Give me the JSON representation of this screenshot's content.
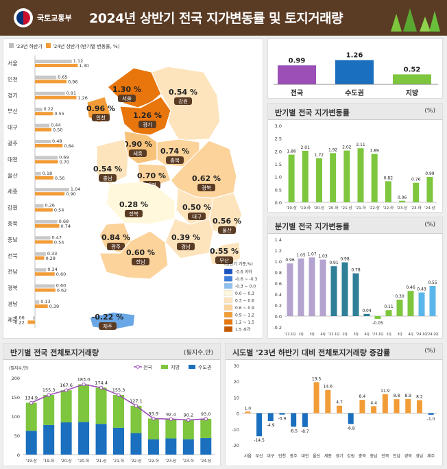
{
  "header": {
    "org": "국토교통부",
    "title": "2024년 상반기 전국 지가변동률 및 토지거래량"
  },
  "left_chart": {
    "legend": [
      "'23년 하반기",
      "'24년 상반기",
      "(반기별 변동률, %)"
    ],
    "regions": [
      "서울",
      "인천",
      "경기",
      "부산",
      "대구",
      "광주",
      "대전",
      "울산",
      "세종",
      "강원",
      "충북",
      "충남",
      "전북",
      "전남",
      "경북",
      "경남",
      "제주"
    ],
    "prev": [
      1.12,
      0.65,
      0.91,
      0.22,
      0.44,
      0.48,
      0.69,
      0.18,
      1.04,
      0.26,
      0.68,
      0.47,
      0.33,
      0.34,
      0.6,
      0.13,
      -0.06
    ],
    "curr": [
      1.3,
      0.96,
      1.26,
      0.55,
      0.5,
      0.84,
      0.7,
      0.56,
      0.9,
      0.54,
      0.74,
      0.54,
      0.28,
      0.6,
      0.62,
      0.39,
      -0.22
    ],
    "prev_labels": [
      "1.12",
      "0.65",
      "0.91",
      "0.22",
      "0.44",
      "0.48",
      "0.69",
      "0.18",
      "1.04",
      "0.26",
      "0.68",
      "0.47",
      "0.33",
      "0.34",
      "0.60",
      "0.13",
      "-0.06"
    ],
    "curr_labels": [
      "1.30",
      "0.96",
      "1.26",
      "0.55",
      "0.50",
      "0.84",
      "0.70",
      "0.56",
      "0.90",
      "0.54",
      "0.74",
      "0.54",
      "0.28",
      "0.60",
      "0.62",
      "0.39",
      "-0.22"
    ]
  },
  "map": {
    "regions": [
      {
        "name": "서울",
        "val": "1.30",
        "color": "#e8760c"
      },
      {
        "name": "인천",
        "val": "0.96",
        "color": "#f29c38"
      },
      {
        "name": "경기",
        "val": "1.26",
        "color": "#e8760c"
      },
      {
        "name": "강원",
        "val": "0.54",
        "color": "#fde4bd"
      },
      {
        "name": "세종",
        "val": "0.90",
        "color": "#f7c27a"
      },
      {
        "name": "충북",
        "val": "0.74",
        "color": "#fbd39b"
      },
      {
        "name": "충남",
        "val": "0.54",
        "color": "#fde4bd"
      },
      {
        "name": "대전",
        "val": "0.70",
        "color": "#fbd39b"
      },
      {
        "name": "경북",
        "val": "0.62",
        "color": "#fbd39b"
      },
      {
        "name": "대구",
        "val": "0.50",
        "color": "#fde4bd"
      },
      {
        "name": "전북",
        "val": "0.28",
        "color": "#fff8dc"
      },
      {
        "name": "울산",
        "val": "0.56",
        "color": "#fde4bd"
      },
      {
        "name": "경남",
        "val": "0.39",
        "color": "#fde4bd"
      },
      {
        "name": "광주",
        "val": "0.84",
        "color": "#fbd39b"
      },
      {
        "name": "전남",
        "val": "0.60",
        "color": "#fbd39b"
      },
      {
        "name": "부산",
        "val": "0.55",
        "color": "#fde4bd"
      },
      {
        "name": "제주",
        "val": "-0.22",
        "color": "#6aa7e6"
      }
    ],
    "legend_title": "(상반기 기준,%)",
    "legend": [
      {
        "label": "-0.6 이하",
        "color": "#1b52c2"
      },
      {
        "label": "-0.6 ~ -0.3",
        "color": "#3f7fdb"
      },
      {
        "label": "-0.3 ~ 0.0",
        "color": "#8fc0ef"
      },
      {
        "label": "0.0 ~ 0.3",
        "color": "#fff8dc"
      },
      {
        "label": "0.3 ~ 0.6",
        "color": "#fde4bd"
      },
      {
        "label": "0.6 ~ 0.9",
        "color": "#fbd39b"
      },
      {
        "label": "0.9 ~ 1.2",
        "color": "#f29c38"
      },
      {
        "label": "1.2 ~ 1.5",
        "color": "#e8760c"
      },
      {
        "label": "1.5 초과",
        "color": "#c65a00"
      }
    ]
  },
  "summary": {
    "labels": [
      "전국",
      "수도권",
      "지방"
    ],
    "values": [
      0.99,
      1.26,
      0.52
    ],
    "value_labels": [
      "0.99",
      "1.26",
      "0.52"
    ],
    "colors": [
      "#9c4fb6",
      "#1a6fbf",
      "#7dc63e"
    ]
  },
  "half_chart": {
    "title": "반기별 전국 지가변동률",
    "unit": "(%)",
    "categories": [
      "'19.상",
      "'19.하",
      "'20.상",
      "'20.하",
      "'21.상",
      "'21.하",
      "'22.상",
      "'22.하",
      "'23.상",
      "'23.하",
      "'24.상"
    ],
    "values": [
      1.86,
      2.01,
      1.72,
      1.92,
      2.02,
      2.11,
      1.89,
      0.82,
      0.06,
      0.76,
      0.99
    ],
    "value_labels": [
      "1.86",
      "2.01",
      "1.72",
      "1.92",
      "2.02",
      "2.11",
      "1.89",
      "0.82",
      "0.06",
      "0.76",
      "0.99"
    ],
    "yticks": [
      "3.0",
      "2.5",
      "2.0",
      "1.5",
      "1.0",
      "0.5",
      "0.0"
    ]
  },
  "quarter_chart": {
    "title": "분기별 전국 지가변동률",
    "unit": "(%)",
    "categories": [
      "'21.1Q",
      "2Q",
      "3Q",
      "4Q",
      "'22.1Q",
      "2Q",
      "3Q",
      "4Q",
      "'23.1Q",
      "2Q",
      "3Q",
      "4Q",
      "'24.1Q",
      "'24.2Q"
    ],
    "values": [
      0.96,
      1.05,
      1.07,
      1.03,
      0.91,
      0.98,
      0.78,
      0.04,
      -0.05,
      0.11,
      0.3,
      0.46,
      0.43,
      0.55
    ],
    "value_labels": [
      "0.96",
      "1.05",
      "1.07",
      "1.03",
      "0.91",
      "0.98",
      "0.78",
      "0.04",
      "-0.05",
      "0.11",
      "0.30",
      "0.46",
      "0.43",
      "0.55"
    ],
    "colors": [
      "#b4a3cf",
      "#b4a3cf",
      "#b4a3cf",
      "#b4a3cf",
      "#2e7f97",
      "#2e7f97",
      "#2e7f97",
      "#2e7f97",
      "#7dc63e",
      "#7dc63e",
      "#7dc63e",
      "#7dc63e",
      "#5ab6e8",
      "#5ab6e8"
    ],
    "yticks": [
      "1.4",
      "1.2",
      "1.0",
      "0.8",
      "0.6",
      "0.4",
      "0.2",
      "0.0",
      "-0.2"
    ]
  },
  "volume_chart": {
    "title": "반기별 전국 전체토지거래량",
    "unit": "(필지수,만)",
    "ylabel": "(필지수,만)",
    "legend": [
      "전국",
      "지방",
      "수도권"
    ],
    "categories": [
      "'19.상",
      "'19.하",
      "'20.상",
      "'20.하",
      "'21.상",
      "'21.하",
      "'22.상",
      "'22.하",
      "'23.상",
      "'23.하",
      "'24.상"
    ],
    "total": [
      134.9,
      155.3,
      167.6,
      183.0,
      174.4,
      155.3,
      127.1,
      93.9,
      92.4,
      90.2,
      93.0
    ],
    "total_labels": [
      "134.9",
      "155.3",
      "167.6",
      "183.0",
      "174.4",
      "155.3",
      "127.1",
      "93.9",
      "92.4",
      "90.2",
      "93.0"
    ],
    "capital": [
      62,
      77,
      84,
      85,
      80,
      70,
      56,
      40,
      42,
      40,
      43
    ],
    "yticks": [
      "200",
      "150",
      "100",
      "50",
      "0"
    ]
  },
  "change_chart": {
    "title": "시도별 '23년 하반기 대비 전체토지거래량 증감률",
    "unit": "(%)",
    "categories": [
      "서울",
      "부산",
      "대구",
      "인천",
      "광주",
      "대전",
      "울산",
      "세종",
      "경기",
      "강원",
      "충북",
      "충남",
      "전북",
      "전남",
      "경북",
      "경남",
      "제주"
    ],
    "values": [
      1.0,
      -14.5,
      -4.9,
      -0.9,
      -8.5,
      -8.7,
      19.5,
      14.6,
      4.7,
      -6.8,
      8.4,
      4.4,
      11.9,
      8.8,
      8.9,
      8.2,
      -1.0
    ],
    "value_labels": [
      "1.0",
      "-14.5",
      "-4.9",
      "-0.9",
      "-8.5",
      "-8.7",
      "19.5",
      "14.6",
      "4.7",
      "-6.8",
      "8.4",
      "4.4",
      "11.9",
      "8.8",
      "8.9",
      "8.2",
      "-1.0"
    ],
    "colors": [
      "#f29c38",
      "#1a6fbf",
      "#1a6fbf",
      "#1a6fbf",
      "#1a6fbf",
      "#1a6fbf",
      "#f29c38",
      "#f29c38",
      "#f29c38",
      "#1a6fbf",
      "#f29c38",
      "#f29c38",
      "#f29c38",
      "#f29c38",
      "#f29c38",
      "#f29c38",
      "#1a6fbf"
    ],
    "yticks": [
      "30",
      "20",
      "10",
      "0",
      "-10",
      "-20"
    ]
  }
}
